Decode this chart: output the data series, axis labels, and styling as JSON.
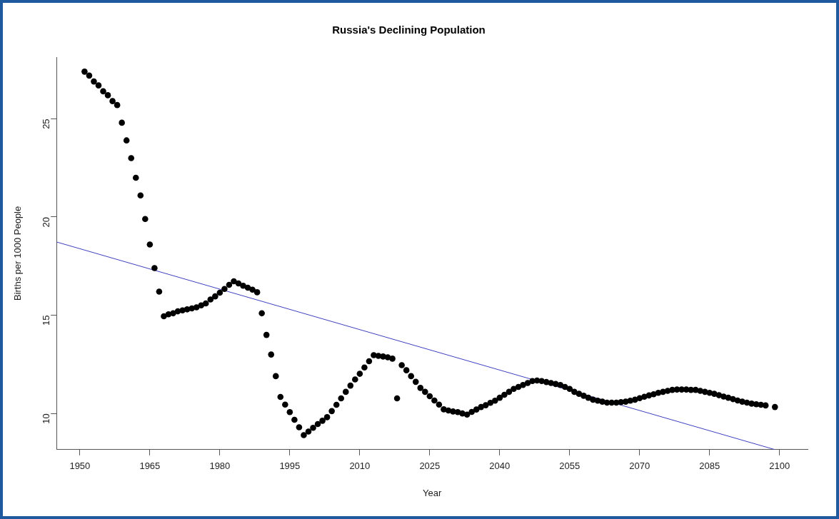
{
  "chart_data": {
    "type": "scatter",
    "title": "Russia's Declining Population",
    "xlabel": "Year",
    "ylabel": "Births per 1000 People",
    "xlim": [
      1945,
      2106
    ],
    "xticks": [
      1950,
      1965,
      1980,
      1995,
      2010,
      2025,
      2040,
      2055,
      2070,
      2085,
      2100
    ],
    "ylim": [
      8.16,
      28.14
    ],
    "yticks": [
      10,
      15,
      20,
      25
    ],
    "grid": false,
    "legend": false,
    "series": [
      {
        "marker": "circle",
        "color": "#000000",
        "x": [
          1951,
          1952,
          1953,
          1954,
          1955,
          1956,
          1957,
          1958,
          1959,
          1960,
          1961,
          1962,
          1963,
          1964,
          1965,
          1966,
          1967,
          1968,
          1969,
          1970,
          1971,
          1972,
          1973,
          1974,
          1975,
          1976,
          1977,
          1978,
          1979,
          1980,
          1981,
          1982,
          1983,
          1984,
          1985,
          1986,
          1987,
          1988,
          1989,
          1990,
          1991,
          1992,
          1993,
          1994,
          1995,
          1996,
          1997,
          1998,
          1999,
          2000,
          2001,
          2002,
          2003,
          2004,
          2005,
          2006,
          2007,
          2008,
          2009,
          2010,
          2011,
          2012,
          2013,
          2014,
          2015,
          2016,
          2017,
          2018,
          2019,
          2020,
          2021,
          2022,
          2023,
          2024,
          2025,
          2026,
          2027,
          2028,
          2029,
          2030,
          2031,
          2032,
          2033,
          2034,
          2035,
          2036,
          2037,
          2038,
          2039,
          2040,
          2041,
          2042,
          2043,
          2044,
          2045,
          2046,
          2047,
          2048,
          2049,
          2050,
          2051,
          2052,
          2053,
          2054,
          2055,
          2056,
          2057,
          2058,
          2059,
          2060,
          2061,
          2062,
          2063,
          2064,
          2065,
          2066,
          2067,
          2068,
          2069,
          2070,
          2071,
          2072,
          2073,
          2074,
          2075,
          2076,
          2077,
          2078,
          2079,
          2080,
          2081,
          2082,
          2083,
          2084,
          2085,
          2086,
          2087,
          2088,
          2089,
          2090,
          2091,
          2092,
          2093,
          2094,
          2095,
          2096,
          2097,
          2099
        ],
        "values": [
          27.4,
          27.2,
          26.9,
          26.7,
          26.4,
          26.2,
          25.9,
          25.7,
          24.8,
          23.9,
          23.0,
          22.0,
          21.1,
          19.9,
          18.6,
          17.4,
          16.2,
          14.95,
          15.05,
          15.1,
          15.2,
          15.25,
          15.3,
          15.35,
          15.4,
          15.5,
          15.6,
          15.8,
          15.96,
          16.15,
          16.34,
          16.55,
          16.73,
          16.62,
          16.5,
          16.4,
          16.3,
          16.17,
          15.1,
          14.0,
          13.0,
          11.9,
          10.84,
          10.45,
          10.07,
          9.68,
          9.3,
          8.9,
          9.08,
          9.27,
          9.46,
          9.63,
          9.81,
          10.12,
          10.44,
          10.77,
          11.1,
          11.42,
          11.73,
          12.02,
          12.34,
          12.66,
          12.97,
          12.93,
          12.9,
          12.86,
          12.79,
          10.77,
          12.46,
          12.2,
          11.9,
          11.61,
          11.3,
          11.1,
          10.88,
          10.66,
          10.45,
          10.21,
          10.15,
          10.1,
          10.07,
          10.0,
          9.94,
          10.08,
          10.2,
          10.33,
          10.42,
          10.54,
          10.65,
          10.8,
          10.95,
          11.1,
          11.25,
          11.35,
          11.45,
          11.55,
          11.65,
          11.68,
          11.65,
          11.6,
          11.55,
          11.5,
          11.45,
          11.35,
          11.25,
          11.1,
          11.0,
          10.9,
          10.8,
          10.7,
          10.65,
          10.6,
          10.55,
          10.55,
          10.55,
          10.58,
          10.6,
          10.65,
          10.7,
          10.78,
          10.85,
          10.92,
          10.98,
          11.05,
          11.1,
          11.15,
          11.2,
          11.22,
          11.22,
          11.22,
          11.2,
          11.2,
          11.15,
          11.1,
          11.05,
          11.0,
          10.93,
          10.86,
          10.8,
          10.73,
          10.66,
          10.6,
          10.55,
          10.5,
          10.47,
          10.44,
          10.41,
          10.33
        ]
      },
      {
        "type": "line",
        "marker": "none",
        "color": "#3f3fbf",
        "x": [
          1945,
          2099
        ],
        "values": [
          18.73,
          8.16
        ]
      }
    ]
  }
}
